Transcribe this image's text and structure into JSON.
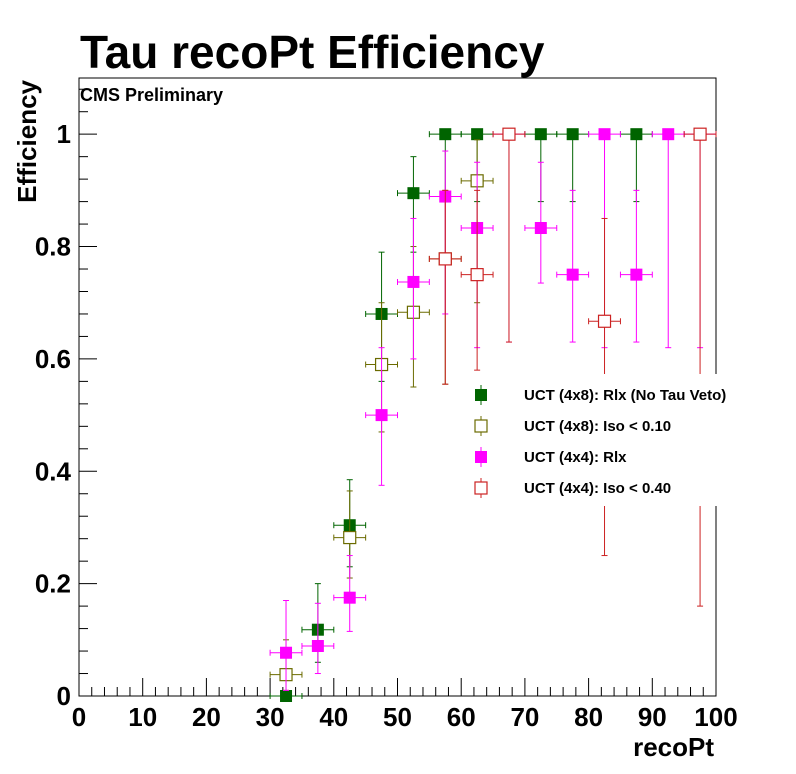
{
  "chart_data": {
    "type": "scatter",
    "title": "Tau recoPt Efficiency",
    "annotation": "CMS Preliminary",
    "xlabel": "recoPt",
    "ylabel": "Efficiency",
    "xlim": [
      0,
      100
    ],
    "ylim": [
      0,
      1.1
    ],
    "x_ticks": [
      0,
      10,
      20,
      30,
      40,
      50,
      60,
      70,
      80,
      90,
      100
    ],
    "y_ticks": [
      0,
      0.2,
      0.4,
      0.6,
      0.8,
      1
    ],
    "y_tick_labels": [
      "0",
      "0.2",
      "0.4",
      "0.6",
      "0.8",
      "1"
    ],
    "grid": false,
    "legend_position": "right",
    "series": [
      {
        "name": "UCT (4x8): Rlx (No Tau Veto)",
        "color": "#006400",
        "marker": "filled-square",
        "points": [
          {
            "x": 32.5,
            "y": 0.0,
            "ylo": 0.0,
            "yhi": 0.0
          },
          {
            "x": 37.5,
            "y": 0.118,
            "ylo": 0.06,
            "yhi": 0.2
          },
          {
            "x": 42.5,
            "y": 0.304,
            "ylo": 0.23,
            "yhi": 0.385
          },
          {
            "x": 47.5,
            "y": 0.68,
            "ylo": 0.56,
            "yhi": 0.79
          },
          {
            "x": 52.5,
            "y": 0.895,
            "ylo": 0.79,
            "yhi": 0.96
          },
          {
            "x": 57.5,
            "y": 1.0,
            "ylo": 0.88,
            "yhi": 1.0
          },
          {
            "x": 62.5,
            "y": 1.0,
            "ylo": 0.88,
            "yhi": 1.0
          },
          {
            "x": 72.5,
            "y": 1.0,
            "ylo": 0.88,
            "yhi": 1.0
          },
          {
            "x": 77.5,
            "y": 1.0,
            "ylo": 0.88,
            "yhi": 1.0
          },
          {
            "x": 87.5,
            "y": 1.0,
            "ylo": 0.88,
            "yhi": 1.0
          }
        ]
      },
      {
        "name": "UCT (4x8): Iso < 0.10",
        "color": "#6b6b00",
        "marker": "open-square",
        "points": [
          {
            "x": 32.5,
            "y": 0.038,
            "ylo": 0.01,
            "yhi": 0.1
          },
          {
            "x": 42.5,
            "y": 0.282,
            "ylo": 0.21,
            "yhi": 0.365
          },
          {
            "x": 47.5,
            "y": 0.59,
            "ylo": 0.47,
            "yhi": 0.7
          },
          {
            "x": 52.5,
            "y": 0.683,
            "ylo": 0.55,
            "yhi": 0.8
          },
          {
            "x": 57.5,
            "y": 0.778,
            "ylo": 0.555,
            "yhi": 0.9
          },
          {
            "x": 62.5,
            "y": 0.917,
            "ylo": 0.7,
            "yhi": 0.99
          }
        ]
      },
      {
        "name": "UCT (4x4): Rlx",
        "color": "#ff00ff",
        "marker": "filled-square",
        "points": [
          {
            "x": 32.5,
            "y": 0.077,
            "ylo": 0.01,
            "yhi": 0.17
          },
          {
            "x": 37.5,
            "y": 0.089,
            "ylo": 0.04,
            "yhi": 0.165
          },
          {
            "x": 42.5,
            "y": 0.175,
            "ylo": 0.115,
            "yhi": 0.25
          },
          {
            "x": 47.5,
            "y": 0.5,
            "ylo": 0.375,
            "yhi": 0.62
          },
          {
            "x": 52.5,
            "y": 0.737,
            "ylo": 0.6,
            "yhi": 0.85
          },
          {
            "x": 57.5,
            "y": 0.889,
            "ylo": 0.68,
            "yhi": 0.97
          },
          {
            "x": 62.5,
            "y": 0.833,
            "ylo": 0.62,
            "yhi": 0.95
          },
          {
            "x": 67.5,
            "y": 1.0,
            "ylo": 0.63,
            "yhi": 1.0
          },
          {
            "x": 72.5,
            "y": 0.833,
            "ylo": 0.735,
            "yhi": 0.95
          },
          {
            "x": 77.5,
            "y": 0.75,
            "ylo": 0.63,
            "yhi": 0.9
          },
          {
            "x": 82.5,
            "y": 1.0,
            "ylo": 0.62,
            "yhi": 1.0
          },
          {
            "x": 87.5,
            "y": 0.75,
            "ylo": 0.63,
            "yhi": 0.9
          },
          {
            "x": 92.5,
            "y": 1.0,
            "ylo": 0.62,
            "yhi": 1.0
          },
          {
            "x": 97.5,
            "y": 1.0,
            "ylo": 0.62,
            "yhi": 1.0
          }
        ]
      },
      {
        "name": "UCT (4x4): Iso < 0.40",
        "color": "#cc2222",
        "marker": "open-square",
        "points": [
          {
            "x": 57.5,
            "y": 0.778,
            "ylo": 0.555,
            "yhi": 0.9
          },
          {
            "x": 62.5,
            "y": 0.75,
            "ylo": 0.58,
            "yhi": 0.9
          },
          {
            "x": 67.5,
            "y": 1.0,
            "ylo": 0.63,
            "yhi": 1.0
          },
          {
            "x": 82.5,
            "y": 0.667,
            "ylo": 0.25,
            "yhi": 0.85
          },
          {
            "x": 97.5,
            "y": 1.0,
            "ylo": 0.16,
            "yhi": 1.0
          }
        ]
      }
    ]
  }
}
